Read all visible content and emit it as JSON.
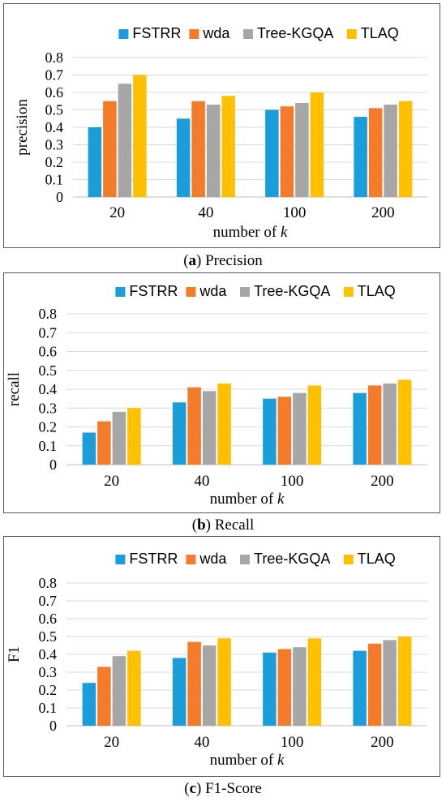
{
  "colors": {
    "FSTRR": "#1b9dd9",
    "wda": "#f47b29",
    "Tree-KGQA": "#a6a6a6",
    "TLAQ": "#ffc000"
  },
  "panels": [
    {
      "caption_letter": "a",
      "caption_text": " Precision",
      "caption_open": "(",
      "caption_close": ")",
      "chart_data": {
        "type": "bar",
        "categories": [
          "20",
          "40",
          "100",
          "200"
        ],
        "series": [
          {
            "name": "FSTRR",
            "values": [
              0.4,
              0.45,
              0.5,
              0.46
            ]
          },
          {
            "name": "wda",
            "values": [
              0.55,
              0.55,
              0.52,
              0.51
            ]
          },
          {
            "name": "Tree-KGQA",
            "values": [
              0.65,
              0.53,
              0.54,
              0.53
            ]
          },
          {
            "name": "TLAQ",
            "values": [
              0.7,
              0.58,
              0.6,
              0.55
            ]
          }
        ],
        "ylabel": "precision",
        "xlabel_prefix": "number of ",
        "xlabel_var": "k",
        "ylim": [
          0,
          0.8
        ],
        "yticks": [
          "0",
          "0.1",
          "0.2",
          "0.3",
          "0.4",
          "0.5",
          "0.6",
          "0.7",
          "0.8"
        ],
        "grid": true,
        "legend": "top"
      }
    },
    {
      "caption_letter": "b",
      "caption_text": " Recall",
      "caption_open": "(",
      "caption_close": ")",
      "chart_data": {
        "type": "bar",
        "categories": [
          "20",
          "40",
          "100",
          "200"
        ],
        "series": [
          {
            "name": "FSTRR",
            "values": [
              0.17,
              0.33,
              0.35,
              0.38
            ]
          },
          {
            "name": "wda",
            "values": [
              0.23,
              0.41,
              0.36,
              0.42
            ]
          },
          {
            "name": "Tree-KGQA",
            "values": [
              0.28,
              0.39,
              0.38,
              0.43
            ]
          },
          {
            "name": "TLAQ",
            "values": [
              0.3,
              0.43,
              0.42,
              0.45
            ]
          }
        ],
        "ylabel": "recall",
        "xlabel_prefix": "number of ",
        "xlabel_var": "k",
        "ylim": [
          0,
          0.8
        ],
        "yticks": [
          "0",
          "0.1",
          "0.2",
          "0.3",
          "0.4",
          "0.5",
          "0.6",
          "0.7",
          "0.8"
        ],
        "grid": true,
        "legend": "top"
      }
    },
    {
      "caption_letter": "c",
      "caption_text": " F1-Score",
      "caption_open": "(",
      "caption_close": ")",
      "chart_data": {
        "type": "bar",
        "categories": [
          "20",
          "40",
          "100",
          "200"
        ],
        "series": [
          {
            "name": "FSTRR",
            "values": [
              0.24,
              0.38,
              0.41,
              0.42
            ]
          },
          {
            "name": "wda",
            "values": [
              0.33,
              0.47,
              0.43,
              0.46
            ]
          },
          {
            "name": "Tree-KGQA",
            "values": [
              0.39,
              0.45,
              0.44,
              0.48
            ]
          },
          {
            "name": "TLAQ",
            "values": [
              0.42,
              0.49,
              0.49,
              0.5
            ]
          }
        ],
        "ylabel": "F1",
        "xlabel_prefix": "number of ",
        "xlabel_var": "k",
        "ylim": [
          0,
          0.8
        ],
        "yticks": [
          "0",
          "0.1",
          "0.2",
          "0.3",
          "0.4",
          "0.5",
          "0.6",
          "0.7",
          "0.8"
        ],
        "grid": true,
        "legend": "top"
      }
    }
  ]
}
